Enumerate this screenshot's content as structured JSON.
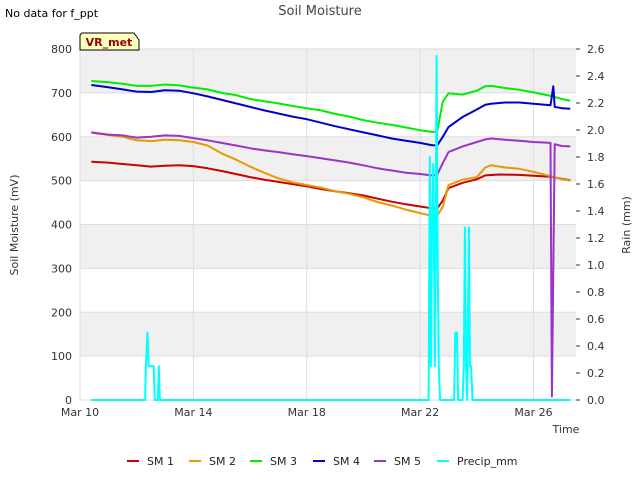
{
  "no_data_note": "No data for f_ppt",
  "chart_data": {
    "type": "line",
    "title": "Soil Moisture",
    "site_label": "VR_met",
    "xlabel": "Time",
    "ylabel_left": "Soil Moisture (mV)",
    "ylabel_right": "Rain (mm)",
    "x_range_days": [
      0,
      17.5
    ],
    "x_ticks": [
      {
        "day": 0,
        "label": "Mar 10"
      },
      {
        "day": 4,
        "label": "Mar 14"
      },
      {
        "day": 8,
        "label": "Mar 18"
      },
      {
        "day": 12,
        "label": "Mar 22"
      },
      {
        "day": 16,
        "label": "Mar 26"
      }
    ],
    "ylim_left": [
      0,
      800
    ],
    "yticks_left": [
      0,
      100,
      200,
      300,
      400,
      500,
      600,
      700,
      800
    ],
    "ylim_right": [
      0.0,
      2.6
    ],
    "yticks_right": [
      "0.0",
      "0.2",
      "0.4",
      "0.6",
      "0.8",
      "1.0",
      "1.2",
      "1.4",
      "1.6",
      "1.8",
      "2.0",
      "2.2",
      "2.4",
      "2.6"
    ],
    "series": [
      {
        "name": "SM 1",
        "color": "#cc0000",
        "axis": "left",
        "points": [
          [
            0.4,
            543
          ],
          [
            1,
            541
          ],
          [
            1.5,
            538
          ],
          [
            2,
            535
          ],
          [
            2.5,
            532
          ],
          [
            3,
            534
          ],
          [
            3.5,
            535
          ],
          [
            4,
            533
          ],
          [
            4.5,
            528
          ],
          [
            5,
            522
          ],
          [
            5.5,
            515
          ],
          [
            6,
            508
          ],
          [
            6.5,
            502
          ],
          [
            7,
            497
          ],
          [
            7.5,
            492
          ],
          [
            8,
            487
          ],
          [
            8.5,
            481
          ],
          [
            9,
            476
          ],
          [
            9.5,
            471
          ],
          [
            10,
            466
          ],
          [
            10.5,
            459
          ],
          [
            11,
            452
          ],
          [
            11.5,
            446
          ],
          [
            12,
            441
          ],
          [
            12.4,
            437
          ],
          [
            12.6,
            436
          ],
          [
            12.8,
            455
          ],
          [
            13,
            483
          ],
          [
            13.5,
            495
          ],
          [
            14,
            503
          ],
          [
            14.3,
            512
          ],
          [
            14.8,
            514
          ],
          [
            15.5,
            513
          ],
          [
            16,
            511
          ],
          [
            16.6,
            509
          ],
          [
            17,
            504
          ],
          [
            17.3,
            501
          ]
        ]
      },
      {
        "name": "SM 2",
        "color": "#e69900",
        "axis": "left",
        "points": [
          [
            0.4,
            609
          ],
          [
            1,
            604
          ],
          [
            1.5,
            600
          ],
          [
            2,
            592
          ],
          [
            2.5,
            590
          ],
          [
            3,
            593
          ],
          [
            3.5,
            592
          ],
          [
            4,
            588
          ],
          [
            4.5,
            580
          ],
          [
            5,
            562
          ],
          [
            5.5,
            548
          ],
          [
            6,
            532
          ],
          [
            6.5,
            518
          ],
          [
            7,
            505
          ],
          [
            7.5,
            496
          ],
          [
            8,
            490
          ],
          [
            8.5,
            484
          ],
          [
            9,
            476
          ],
          [
            9.5,
            470
          ],
          [
            10,
            462
          ],
          [
            10.5,
            451
          ],
          [
            11,
            443
          ],
          [
            11.5,
            434
          ],
          [
            12,
            426
          ],
          [
            12.4,
            420
          ],
          [
            12.6,
            420
          ],
          [
            12.8,
            440
          ],
          [
            13,
            490
          ],
          [
            13.5,
            502
          ],
          [
            14,
            508
          ],
          [
            14.3,
            530
          ],
          [
            14.5,
            535
          ],
          [
            15,
            530
          ],
          [
            15.5,
            527
          ],
          [
            16,
            520
          ],
          [
            16.6,
            510
          ],
          [
            17,
            503
          ],
          [
            17.3,
            500
          ]
        ]
      },
      {
        "name": "SM 3",
        "color": "#00ee00",
        "axis": "left",
        "points": [
          [
            0.4,
            727
          ],
          [
            1,
            724
          ],
          [
            1.5,
            721
          ],
          [
            2,
            716
          ],
          [
            2.5,
            716
          ],
          [
            3,
            719
          ],
          [
            3.5,
            717
          ],
          [
            4,
            712
          ],
          [
            4.5,
            708
          ],
          [
            5,
            700
          ],
          [
            5.5,
            695
          ],
          [
            6,
            686
          ],
          [
            6.5,
            681
          ],
          [
            7,
            676
          ],
          [
            7.5,
            670
          ],
          [
            8,
            665
          ],
          [
            8.5,
            660
          ],
          [
            9,
            652
          ],
          [
            9.5,
            646
          ],
          [
            10,
            638
          ],
          [
            10.5,
            632
          ],
          [
            11,
            627
          ],
          [
            11.5,
            621
          ],
          [
            12,
            615
          ],
          [
            12.4,
            611
          ],
          [
            12.6,
            611
          ],
          [
            12.8,
            680
          ],
          [
            13,
            699
          ],
          [
            13.5,
            696
          ],
          [
            14,
            705
          ],
          [
            14.3,
            715
          ],
          [
            14.5,
            716
          ],
          [
            15,
            711
          ],
          [
            15.5,
            707
          ],
          [
            16,
            701
          ],
          [
            16.6,
            693
          ],
          [
            17,
            686
          ],
          [
            17.3,
            682
          ]
        ]
      },
      {
        "name": "SM 4",
        "color": "#0000cc",
        "axis": "left",
        "points": [
          [
            0.4,
            718
          ],
          [
            1,
            713
          ],
          [
            1.5,
            708
          ],
          [
            2,
            703
          ],
          [
            2.5,
            702
          ],
          [
            3,
            706
          ],
          [
            3.5,
            705
          ],
          [
            4,
            699
          ],
          [
            4.5,
            692
          ],
          [
            5,
            684
          ],
          [
            5.5,
            676
          ],
          [
            6,
            668
          ],
          [
            6.5,
            660
          ],
          [
            7,
            653
          ],
          [
            7.5,
            646
          ],
          [
            8,
            640
          ],
          [
            8.5,
            632
          ],
          [
            9,
            624
          ],
          [
            9.5,
            617
          ],
          [
            10,
            610
          ],
          [
            10.5,
            603
          ],
          [
            11,
            596
          ],
          [
            11.5,
            591
          ],
          [
            12,
            586
          ],
          [
            12.4,
            581
          ],
          [
            12.6,
            580
          ],
          [
            12.8,
            600
          ],
          [
            13,
            622
          ],
          [
            13.5,
            645
          ],
          [
            14,
            662
          ],
          [
            14.3,
            673
          ],
          [
            14.5,
            675
          ],
          [
            15,
            678
          ],
          [
            15.5,
            678
          ],
          [
            16,
            675
          ],
          [
            16.6,
            672
          ],
          [
            16.7,
            715
          ],
          [
            16.75,
            668
          ],
          [
            17,
            665
          ],
          [
            17.3,
            664
          ]
        ]
      },
      {
        "name": "SM 5",
        "color": "#9933cc",
        "axis": "left",
        "points": [
          [
            0.4,
            610
          ],
          [
            1,
            605
          ],
          [
            1.5,
            603
          ],
          [
            2,
            598
          ],
          [
            2.5,
            600
          ],
          [
            3,
            603
          ],
          [
            3.5,
            602
          ],
          [
            4,
            597
          ],
          [
            4.5,
            592
          ],
          [
            5,
            586
          ],
          [
            5.5,
            580
          ],
          [
            6,
            574
          ],
          [
            6.5,
            569
          ],
          [
            7,
            565
          ],
          [
            7.5,
            560
          ],
          [
            8,
            556
          ],
          [
            8.5,
            551
          ],
          [
            9,
            546
          ],
          [
            9.5,
            541
          ],
          [
            10,
            535
          ],
          [
            10.5,
            528
          ],
          [
            11,
            523
          ],
          [
            11.5,
            518
          ],
          [
            12,
            515
          ],
          [
            12.4,
            512
          ],
          [
            12.6,
            513
          ],
          [
            12.8,
            540
          ],
          [
            13,
            565
          ],
          [
            13.5,
            578
          ],
          [
            14,
            588
          ],
          [
            14.3,
            594
          ],
          [
            14.5,
            596
          ],
          [
            15,
            593
          ],
          [
            15.5,
            591
          ],
          [
            16,
            588
          ],
          [
            16.6,
            586
          ],
          [
            16.65,
            8
          ],
          [
            16.75,
            583
          ],
          [
            17,
            579
          ],
          [
            17.3,
            578
          ]
        ]
      },
      {
        "name": "Precip_mm",
        "color": "#00ffff",
        "axis": "right",
        "points": [
          [
            0.4,
            0
          ],
          [
            2.3,
            0
          ],
          [
            2.32,
            0.25
          ],
          [
            2.38,
            0.5
          ],
          [
            2.42,
            0.25
          ],
          [
            2.6,
            0.25
          ],
          [
            2.64,
            0
          ],
          [
            2.75,
            0
          ],
          [
            2.78,
            0.25
          ],
          [
            2.82,
            0
          ],
          [
            12.3,
            0
          ],
          [
            12.34,
            1.8
          ],
          [
            12.38,
            0.25
          ],
          [
            12.42,
            1.3
          ],
          [
            12.46,
            1.75
          ],
          [
            12.52,
            0.25
          ],
          [
            12.58,
            2.55
          ],
          [
            12.62,
            1.0
          ],
          [
            12.66,
            0.25
          ],
          [
            12.7,
            0
          ],
          [
            13.2,
            0
          ],
          [
            13.24,
            0.5
          ],
          [
            13.3,
            0.5
          ],
          [
            13.34,
            0
          ],
          [
            13.5,
            0
          ],
          [
            13.54,
            0.25
          ],
          [
            13.58,
            1.28
          ],
          [
            13.62,
            0.25
          ],
          [
            13.66,
            0
          ],
          [
            13.72,
            1.28
          ],
          [
            13.76,
            0.25
          ],
          [
            13.8,
            0.25
          ],
          [
            13.85,
            0
          ],
          [
            17.3,
            0
          ]
        ]
      }
    ],
    "legend_position": "bottom-center"
  }
}
